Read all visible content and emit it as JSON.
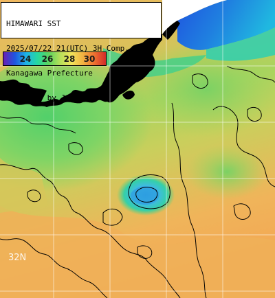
{
  "header": {
    "line1": "HIMAWARI SST",
    "line2": "2025/07/22 21(UTC) 3H Comp.",
    "line3": "Kanagawa Prefecture",
    "line4": "supplied by JAXA"
  },
  "colorbar": {
    "ticks": [
      "24",
      "26",
      "28",
      "30"
    ],
    "colors": [
      "#6a1fb4",
      "#1f55e0",
      "#1fb3e6",
      "#26d8a0",
      "#5ed45e",
      "#b7e05a",
      "#f2e25a",
      "#f2b040",
      "#ee7030",
      "#d22a2a"
    ]
  },
  "grid": {
    "lat_label": "32N"
  },
  "colors": {
    "land": "#000000",
    "no_data": "#ffffff",
    "sst_cool": "#1f7fe0",
    "sst_mid": "#8fd36a",
    "sst_warm": "#eeb25a",
    "contour": "#000000",
    "grid_line": "#ffffff"
  }
}
